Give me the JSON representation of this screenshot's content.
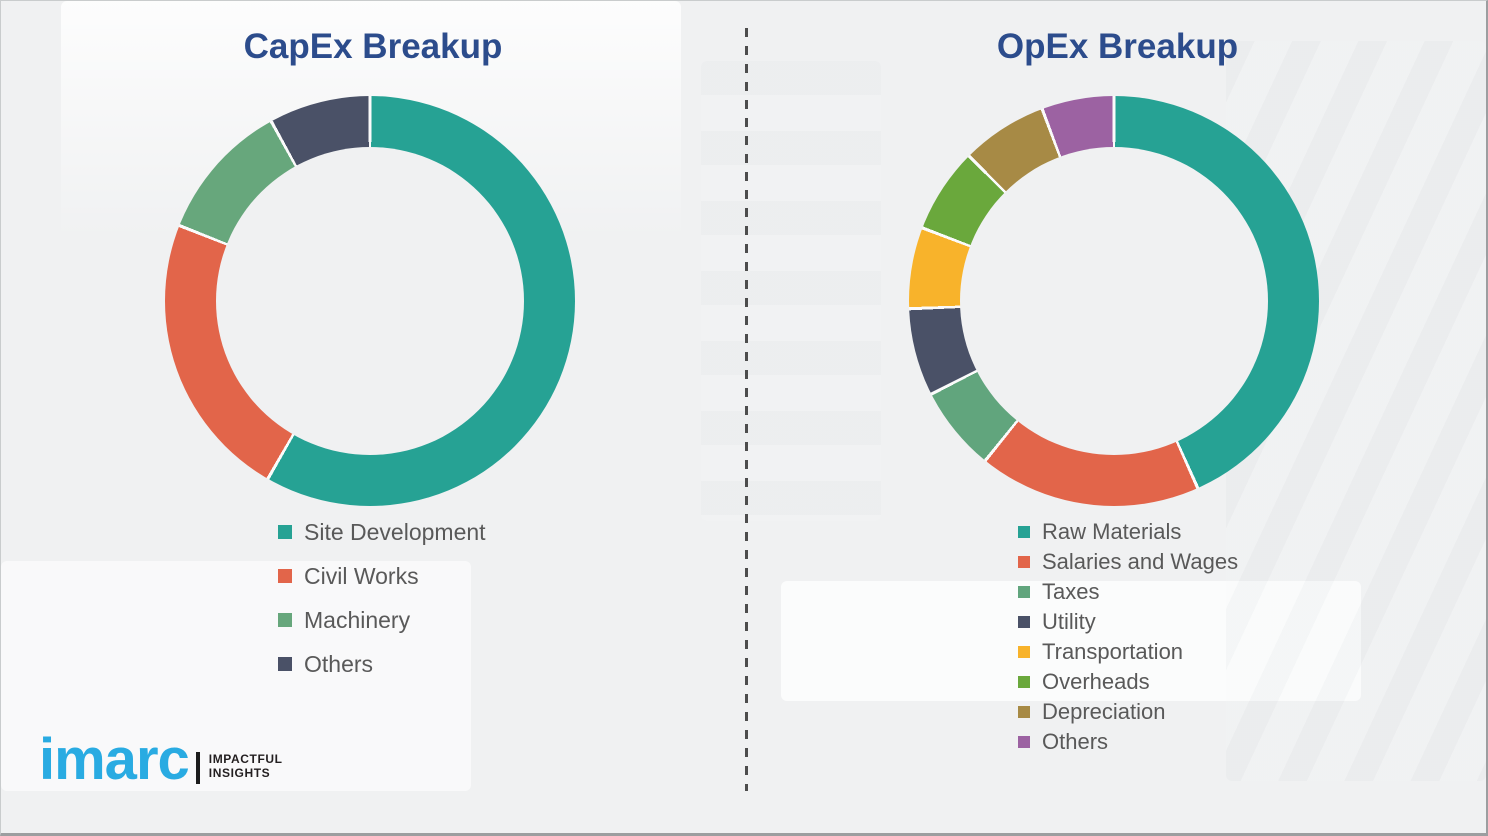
{
  "canvas": {
    "background_color": "#f0f1f2",
    "border_color": "#9c9ea0",
    "divider_color": "#4d4d4d",
    "title_color": "#2c4c8c",
    "legend_text_color": "#595959"
  },
  "chart_data": [
    {
      "type": "pie",
      "variant": "donut",
      "title": "CapEx Breakup",
      "start_angle_deg": 0,
      "direction": "clockwise",
      "inner_radius_ratio": 0.75,
      "values_labeled_on_chart": false,
      "values_are_estimates_from_arc_length": true,
      "legend_position": "below-left",
      "segments": [
        {
          "label": "Site Development",
          "value_pct": 58.3,
          "color": "#26a294"
        },
        {
          "label": "Civil Works",
          "value_pct": 22.7,
          "color": "#e2654a"
        },
        {
          "label": "Machinery",
          "value_pct": 11.0,
          "color": "#67a77c"
        },
        {
          "label": "Others",
          "value_pct": 8.0,
          "color": "#4a5167"
        }
      ]
    },
    {
      "type": "pie",
      "variant": "donut",
      "title": "OpEx Breakup",
      "start_angle_deg": 0,
      "direction": "clockwise",
      "inner_radius_ratio": 0.75,
      "values_labeled_on_chart": false,
      "values_are_estimates_from_arc_length": true,
      "legend_position": "below-left",
      "segments": [
        {
          "label": "Raw Materials",
          "value_pct": 43.3,
          "color": "#26a294"
        },
        {
          "label": "Salaries and Wages",
          "value_pct": 17.5,
          "color": "#e2654a"
        },
        {
          "label": "Taxes",
          "value_pct": 6.7,
          "color": "#61a57d"
        },
        {
          "label": "Utility",
          "value_pct": 6.9,
          "color": "#4a5167"
        },
        {
          "label": "Transportation",
          "value_pct": 6.4,
          "color": "#f8b32b"
        },
        {
          "label": "Overheads",
          "value_pct": 6.7,
          "color": "#6aa83c"
        },
        {
          "label": "Depreciation",
          "value_pct": 6.8,
          "color": "#a78a45"
        },
        {
          "label": "Others",
          "value_pct": 5.7,
          "color": "#9c62a2"
        }
      ]
    }
  ],
  "logo": {
    "brand": "imarc",
    "brand_color": "#29abe2",
    "tagline_line1": "IMPACTFUL",
    "tagline_line2": "INSIGHTS",
    "tagline_color": "#231f20"
  }
}
